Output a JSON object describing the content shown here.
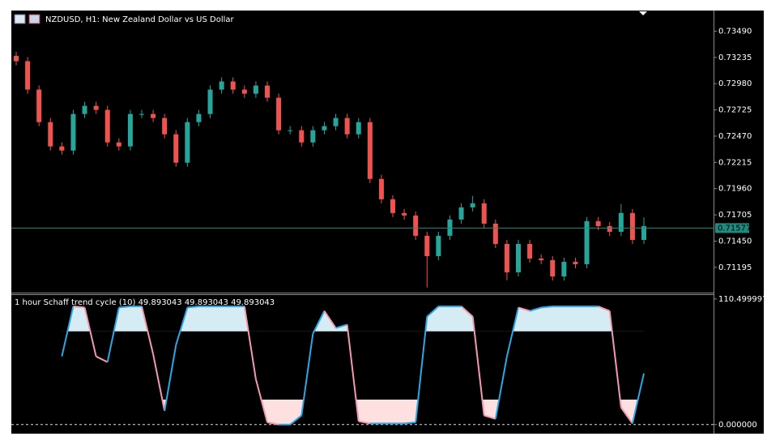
{
  "chart_data": [
    {
      "type": "candlestick",
      "title": "NZDUSD, H1:  New Zealand Dollar vs US Dollar",
      "up_color": "#26a69a",
      "down_color": "#ef5350",
      "open": [
        0.7325,
        0.73198,
        0.72922,
        0.72606,
        0.7237,
        0.7233,
        0.72685,
        0.72764,
        0.72725,
        0.72409,
        0.7237,
        0.72685,
        0.72685,
        0.72646,
        0.72488,
        0.72212,
        0.72606,
        0.72685,
        0.72922,
        0.73001,
        0.72922,
        0.72882,
        0.72961,
        0.72843,
        0.72527,
        0.72527,
        0.72409,
        0.72527,
        0.72567,
        0.72646,
        0.72488,
        0.72606,
        0.72054,
        0.71857,
        0.71723,
        0.71699,
        0.71502,
        0.71304,
        0.71502,
        0.7166,
        0.71778,
        0.71817,
        0.7162,
        0.71423,
        0.71147,
        0.71423,
        0.71281,
        0.71265,
        0.71107,
        0.71249,
        0.71226,
        0.71644,
        0.71596,
        0.71541,
        0.71723,
        0.71462
      ],
      "high": [
        0.7329,
        0.73238,
        0.72962,
        0.72646,
        0.7241,
        0.72725,
        0.72804,
        0.72804,
        0.72765,
        0.72449,
        0.72725,
        0.72725,
        0.72725,
        0.72686,
        0.72528,
        0.72646,
        0.72725,
        0.72962,
        0.73041,
        0.73041,
        0.72962,
        0.73001,
        0.73001,
        0.72883,
        0.72567,
        0.72567,
        0.72567,
        0.72607,
        0.72686,
        0.72686,
        0.72646,
        0.72646,
        0.72094,
        0.71897,
        0.71763,
        0.71739,
        0.71542,
        0.71542,
        0.717,
        0.71818,
        0.7189,
        0.71857,
        0.7166,
        0.71463,
        0.71463,
        0.71463,
        0.71321,
        0.71305,
        0.71289,
        0.71289,
        0.71684,
        0.71684,
        0.71636,
        0.7181,
        0.71763,
        0.7168
      ],
      "low": [
        0.73158,
        0.72882,
        0.72566,
        0.7233,
        0.7229,
        0.7229,
        0.72645,
        0.72685,
        0.72369,
        0.7233,
        0.7233,
        0.72645,
        0.72606,
        0.72448,
        0.72172,
        0.72172,
        0.72566,
        0.72645,
        0.72882,
        0.72882,
        0.72842,
        0.72842,
        0.72803,
        0.72487,
        0.72487,
        0.72369,
        0.72369,
        0.72487,
        0.72527,
        0.72448,
        0.72448,
        0.72014,
        0.71817,
        0.71683,
        0.71659,
        0.71462,
        0.71,
        0.71264,
        0.71462,
        0.7162,
        0.71738,
        0.7158,
        0.71383,
        0.7107,
        0.71107,
        0.71241,
        0.71225,
        0.71067,
        0.71067,
        0.71186,
        0.71186,
        0.71556,
        0.71501,
        0.71501,
        0.71422,
        0.71422
      ],
      "close": [
        0.73198,
        0.72922,
        0.72606,
        0.7237,
        0.7233,
        0.72685,
        0.72764,
        0.72725,
        0.72409,
        0.7237,
        0.72685,
        0.72685,
        0.72646,
        0.72488,
        0.72212,
        0.72606,
        0.72685,
        0.72922,
        0.73001,
        0.72922,
        0.72882,
        0.72961,
        0.72843,
        0.72527,
        0.72527,
        0.72409,
        0.72527,
        0.72567,
        0.72646,
        0.72488,
        0.72606,
        0.72054,
        0.71857,
        0.71723,
        0.71699,
        0.71502,
        0.71304,
        0.71502,
        0.7166,
        0.71778,
        0.71817,
        0.7162,
        0.71423,
        0.71147,
        0.71423,
        0.71281,
        0.71265,
        0.71107,
        0.71249,
        0.71226,
        0.71644,
        0.71596,
        0.71541,
        0.71723,
        0.71462,
        0.71596
      ],
      "ylim": [
        0.7095,
        0.7369
      ],
      "yticks": [
        {
          "value": 0.7349,
          "label": "0.73490"
        },
        {
          "value": 0.73235,
          "label": "0.73235"
        },
        {
          "value": 0.7298,
          "label": "0.72980"
        },
        {
          "value": 0.72725,
          "label": "0.72725"
        },
        {
          "value": 0.7247,
          "label": "0.72470"
        },
        {
          "value": 0.72215,
          "label": "0.72215"
        },
        {
          "value": 0.7196,
          "label": "0.71960"
        },
        {
          "value": 0.71705,
          "label": "0.71705"
        },
        {
          "value": 0.7145,
          "label": "0.71450"
        },
        {
          "value": 0.71195,
          "label": "0.71195"
        }
      ],
      "price_line": {
        "value": 0.71577,
        "label": "0.71577"
      },
      "price_line_color": "#1e8c7e"
    },
    {
      "type": "line",
      "title": "1 hour Schaff trend cycle (10) 49.893043 49.893043 49.893043",
      "series": [
        {
          "values": [
            null,
            null,
            null,
            null,
            60,
            104,
            103,
            60,
            55,
            103,
            104,
            104,
            62,
            12,
            70,
            103,
            104,
            104,
            104,
            104,
            104,
            40,
            2,
            0,
            0,
            8,
            80,
            100,
            85,
            88,
            3,
            1,
            1,
            1,
            1,
            2,
            95,
            104,
            104,
            104,
            95,
            8,
            5,
            60,
            103,
            100,
            103,
            104,
            104,
            104,
            104,
            104,
            100,
            15,
            1,
            45
          ],
          "color": "#29a9e8",
          "falling_color": "#f49ab0"
        }
      ],
      "levels": [
        22,
        82
      ],
      "upper_fill": "#d6ecf5",
      "lower_fill": "#ffe0e0",
      "ylim": [
        -8,
        114
      ],
      "yticks": [
        110.499997,
        {
          "value": 0,
          "label": "0.000000"
        }
      ]
    }
  ]
}
